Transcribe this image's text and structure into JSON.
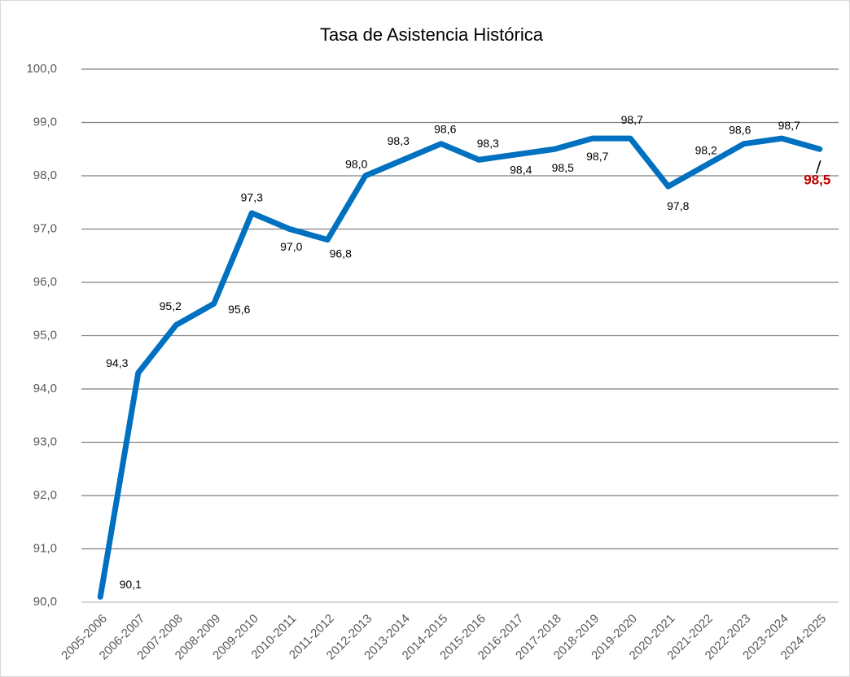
{
  "chart_data": {
    "type": "line",
    "title": "Tasa de Asistencia Histórica",
    "categories": [
      "2005-2006",
      "2006-2007",
      "2007-2008",
      "2008-2009",
      "2009-2010",
      "2010-2011",
      "2011-2012",
      "2012-2013",
      "2013-2014",
      "2014-2015",
      "2015-2016",
      "2016-2017",
      "2017-2018",
      "2018-2019",
      "2019-2020",
      "2020-2021",
      "2021-2022",
      "2022-2023",
      "2023-2024",
      "2024-2025"
    ],
    "series": [
      {
        "name": "Tasa de Asistencia",
        "color": "#0070c0",
        "values": [
          90.1,
          94.3,
          95.2,
          95.6,
          97.3,
          97.0,
          96.8,
          98.0,
          98.3,
          98.6,
          98.3,
          98.4,
          98.5,
          98.7,
          98.7,
          97.8,
          98.2,
          98.6,
          98.7,
          98.5
        ],
        "value_labels": [
          "90,1",
          "94,3",
          "95,2",
          "95,6",
          "97,3",
          "97,0",
          "96,8",
          "98,0",
          "98,3",
          "98,6",
          "98,3",
          "98,4",
          "98,5",
          "98,7",
          "98,7",
          "97,8",
          "98,2",
          "98,6",
          "98,7",
          "98,5"
        ]
      }
    ],
    "highlight_color": "#c00000",
    "ylim": [
      90,
      100
    ],
    "yticks": [
      {
        "value": 90,
        "label": "90,0"
      },
      {
        "value": 91,
        "label": "91,0"
      },
      {
        "value": 92,
        "label": "92,0"
      },
      {
        "value": 93,
        "label": "93,0"
      },
      {
        "value": 94,
        "label": "94,0"
      },
      {
        "value": 95,
        "label": "95,0"
      },
      {
        "value": 96,
        "label": "96,0"
      },
      {
        "value": 97,
        "label": "97,0"
      },
      {
        "value": 98,
        "label": "98,0"
      },
      {
        "value": 99,
        "label": "99,0"
      },
      {
        "value": 100,
        "label": "100,0"
      }
    ],
    "grid": true
  }
}
